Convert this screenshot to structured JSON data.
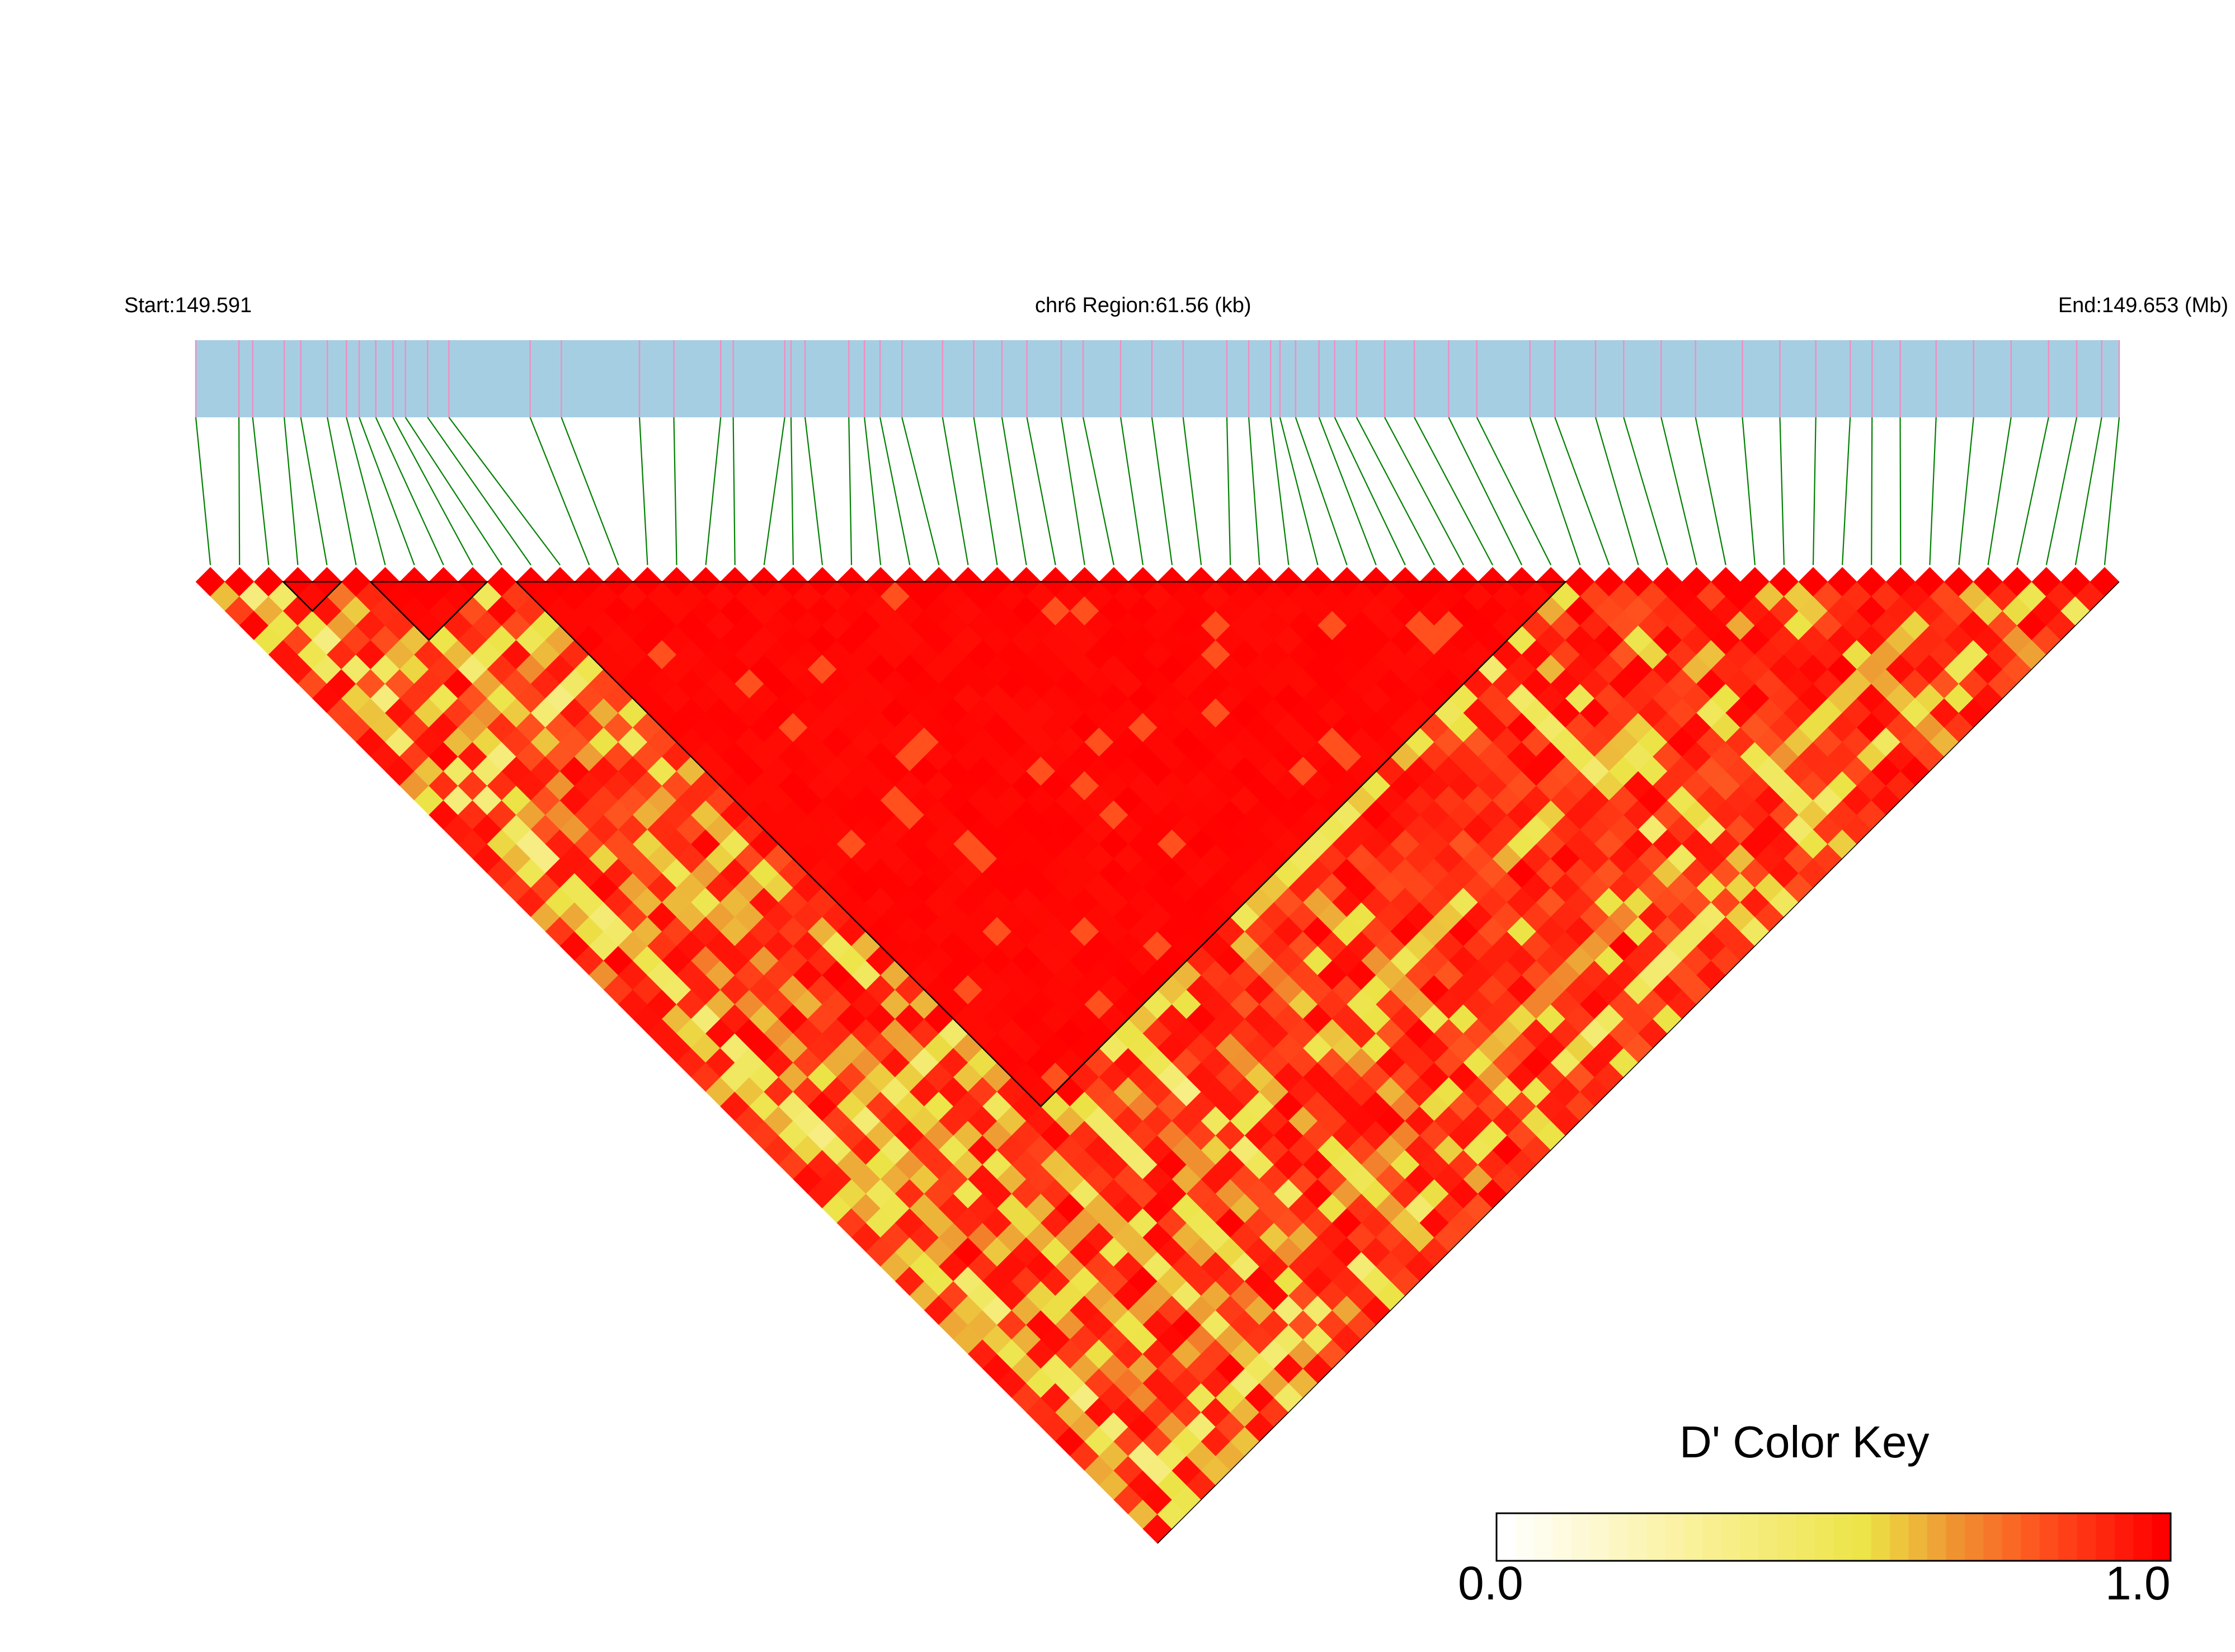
{
  "chart_data": {
    "type": "heatmap",
    "start_label": "Start:149.591",
    "region_label": "chr6 Region:61.56 (kb)",
    "end_label": "End:149.653 (Mb)",
    "region_start_mb": 149.591,
    "region_end_mb": 149.653,
    "n_snps": 66,
    "color_key": {
      "title": "D' Color Key",
      "min_label": "0.0",
      "max_label": "1.0",
      "min": 0.0,
      "max": 1.0,
      "colors": [
        "#ffffff",
        "#f5f27a",
        "#ec7a2a",
        "#ff0000"
      ]
    },
    "ld_blocks": [
      {
        "from": 3,
        "to": 4
      },
      {
        "from": 6,
        "to": 9
      },
      {
        "from": 11,
        "to": 46
      }
    ],
    "snp_bp_offsets": [
      0,
      1380,
      1820,
      2830,
      3360,
      4210,
      4820,
      5230,
      5760,
      6310,
      6710,
      7420,
      8100,
      10700,
      11700,
      14200,
      15300,
      16800,
      17200,
      18850,
      19050,
      19500,
      20900,
      21400,
      21900,
      22600,
      23900,
      24900,
      25800,
      26600,
      27700,
      28400,
      29600,
      30600,
      31600,
      33000,
      33700,
      34400,
      34700,
      35200,
      35950,
      36450,
      37150,
      38050,
      39000,
      40100,
      41000,
      42700,
      43500,
      44800,
      45700,
      46900,
      48000,
      49500,
      50700,
      51850,
      52950,
      53650,
      54550,
      55700,
      56900,
      58100,
      59300,
      60200,
      61000,
      61560
    ]
  },
  "colors": {
    "gene_track": "#a6cee3",
    "snp_tick": "#f08fc0",
    "connector": "#008000",
    "high_ld": "#ff0000",
    "low_ld": "#ffffff"
  }
}
